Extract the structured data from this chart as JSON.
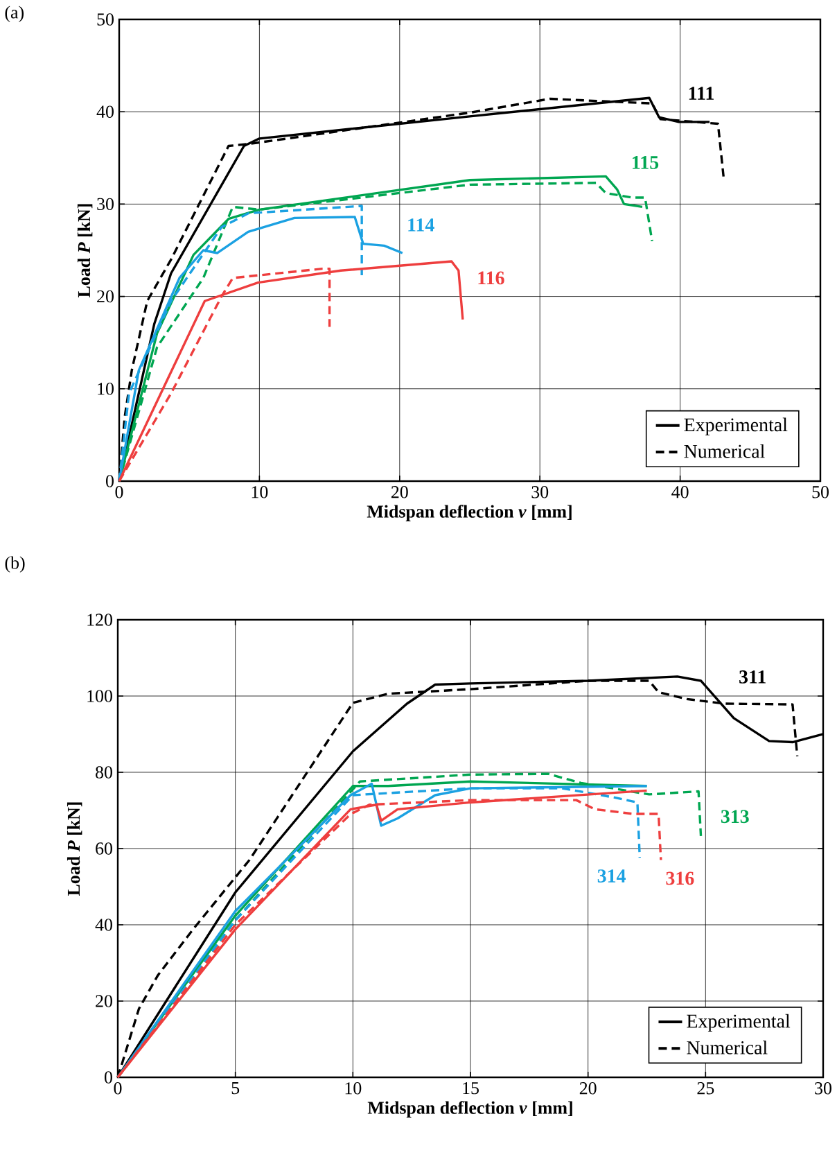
{
  "chart_data": [
    {
      "type": "line",
      "xlabel": "Midspan deflection *v* [mm]",
      "ylabel": "Load *P* [kN]",
      "xlim": [
        0,
        50
      ],
      "ylim": [
        0,
        50
      ],
      "xticks": [
        0,
        10,
        20,
        30,
        40,
        50
      ],
      "yticks": [
        0,
        10,
        20,
        30,
        40,
        50
      ],
      "grid": true,
      "legend": "bottom right",
      "annotations": [
        "(a)",
        "111",
        "115",
        "114",
        "116"
      ],
      "series": [
        {
          "name": "Experimental",
          "color": "#000000",
          "line_style": "solid",
          "x": [
            0,
            2.5,
            3.7,
            8.9,
            10,
            25,
            37.8,
            38.5,
            39.9,
            42.1
          ],
          "values": [
            0,
            17,
            22.5,
            36.3,
            37.1,
            39.5,
            41.5,
            39.4,
            38.9,
            38.9
          ]
        },
        {
          "name": "Numerical",
          "color": "#000000",
          "line_style": "dashed",
          "x": [
            0,
            0.4,
            0.9,
            2,
            3.7,
            7.8,
            9.2,
            25,
            30.7,
            38,
            38.6,
            42.7,
            43.1
          ],
          "values": [
            0,
            7,
            12,
            19.5,
            24,
            36.3,
            36.5,
            39.9,
            41.4,
            40.9,
            39.2,
            38.7,
            32.9
          ]
        },
        {
          "color": "#00a651",
          "line_style": "solid",
          "x": [
            0,
            2.7,
            5.3,
            7.8,
            10,
            25,
            34.7,
            35.5,
            36,
            37.3
          ],
          "values": [
            0,
            16,
            24.5,
            28.4,
            29.4,
            32.6,
            33,
            31.6,
            30,
            29.7
          ]
        },
        {
          "color": "#00a651",
          "line_style": "dashed",
          "x": [
            0,
            2.7,
            6,
            8.1,
            10,
            25,
            34,
            34.7,
            36.6,
            37.5,
            38
          ],
          "values": [
            0,
            14.5,
            22,
            29.7,
            29.4,
            32.1,
            32.3,
            31.2,
            30.7,
            30.7,
            26
          ]
        },
        {
          "color": "#1ba1e2",
          "line_style": "solid",
          "x": [
            0,
            1.4,
            4.3,
            6,
            7,
            9.2,
            12.5,
            16.8,
            17.4,
            18.9,
            20.2
          ],
          "values": [
            0,
            12,
            22,
            25,
            24.7,
            27,
            28.5,
            28.6,
            25.7,
            25.5,
            24.7
          ]
        },
        {
          "color": "#1ba1e2",
          "line_style": "dashed",
          "x": [
            0,
            0.7,
            3.7,
            7.3,
            9.2,
            17.3,
            17.3
          ],
          "values": [
            0,
            9.5,
            19.5,
            27.5,
            29,
            29.8,
            22.3
          ]
        },
        {
          "color": "#ee3e3e",
          "line_style": "solid",
          "x": [
            0,
            6.1,
            9.9,
            15.8,
            23.7,
            24.2,
            24.5
          ],
          "values": [
            0,
            19.5,
            21.5,
            22.8,
            23.8,
            22.8,
            17.5
          ]
        },
        {
          "color": "#ee3e3e",
          "line_style": "dashed",
          "x": [
            0,
            3.7,
            7.3,
            8.1,
            14.5,
            15,
            15
          ],
          "values": [
            0,
            9.5,
            20,
            22,
            23,
            23,
            16.7
          ]
        }
      ]
    },
    {
      "type": "line",
      "xlabel": "Midspan deflection *v* [mm]",
      "ylabel": "Load *P* [kN]",
      "xlim": [
        0,
        30
      ],
      "ylim": [
        0,
        120
      ],
      "xticks": [
        0,
        5,
        10,
        15,
        20,
        25,
        30
      ],
      "yticks": [
        0,
        20,
        40,
        60,
        80,
        100,
        120
      ],
      "grid": true,
      "legend": "bottom right",
      "annotations": [
        "(b)",
        "311",
        "313",
        "314",
        "316"
      ],
      "series": [
        {
          "name": "Experimental",
          "color": "#000000",
          "line_style": "solid",
          "x": [
            0,
            5,
            10,
            12.3,
            13.5,
            15,
            20,
            23.8,
            24.8,
            26.2,
            27.7,
            28.7,
            30
          ],
          "values": [
            0,
            48.5,
            85.5,
            98,
            103,
            103.3,
            104,
            105.1,
            104,
            94.2,
            88.2,
            87.9,
            90
          ]
        },
        {
          "name": "Numerical",
          "color": "#000000",
          "line_style": "dashed",
          "x": [
            0,
            0.9,
            1.7,
            3.2,
            5.6,
            10,
            11.5,
            15,
            20,
            22.6,
            23,
            24.2,
            25.8,
            28.7,
            28.9
          ],
          "values": [
            0,
            18,
            26.7,
            38.8,
            57,
            98.2,
            100.6,
            101.8,
            104,
            104,
            101,
            99.2,
            98,
            97.8,
            84.2
          ]
        },
        {
          "color": "#00a651",
          "line_style": "solid",
          "x": [
            0,
            5,
            10,
            11.5,
            15,
            22.5
          ],
          "values": [
            0,
            42.4,
            76.4,
            76.4,
            77.6,
            76.4
          ]
        },
        {
          "color": "#00a651",
          "line_style": "dashed",
          "x": [
            0,
            5,
            10.3,
            15,
            18.3,
            19.7,
            22.6,
            24.7,
            24.8
          ],
          "values": [
            0,
            41.2,
            77.6,
            79.4,
            79.6,
            77.2,
            74.2,
            75,
            63.3
          ]
        },
        {
          "color": "#1ba1e2",
          "line_style": "solid",
          "x": [
            0,
            5,
            9.9,
            10.8,
            11.2,
            11.9,
            13.5,
            15,
            22.5
          ],
          "values": [
            0,
            43.6,
            74,
            77,
            66,
            67.9,
            74,
            75.8,
            76.4
          ]
        },
        {
          "color": "#1ba1e2",
          "line_style": "dashed",
          "x": [
            0,
            5,
            10,
            15,
            18.9,
            21.2,
            22.1,
            22.2
          ],
          "values": [
            0,
            41.2,
            74,
            75.8,
            75.8,
            73.3,
            72.1,
            57.6
          ]
        },
        {
          "color": "#ee3e3e",
          "line_style": "solid",
          "x": [
            0,
            5,
            9.9,
            11,
            11.2,
            11.9,
            15,
            22.5
          ],
          "values": [
            0,
            38.8,
            70.3,
            71.5,
            67.3,
            70.3,
            72.1,
            75.2
          ]
        },
        {
          "color": "#ee3e3e",
          "line_style": "dashed",
          "x": [
            0,
            5,
            9.9,
            10.7,
            15,
            19.5,
            20.3,
            21.9,
            23,
            23.1
          ],
          "values": [
            0,
            40,
            69,
            71.5,
            72.7,
            72.7,
            70.3,
            69.1,
            69.1,
            57
          ]
        }
      ]
    }
  ]
}
